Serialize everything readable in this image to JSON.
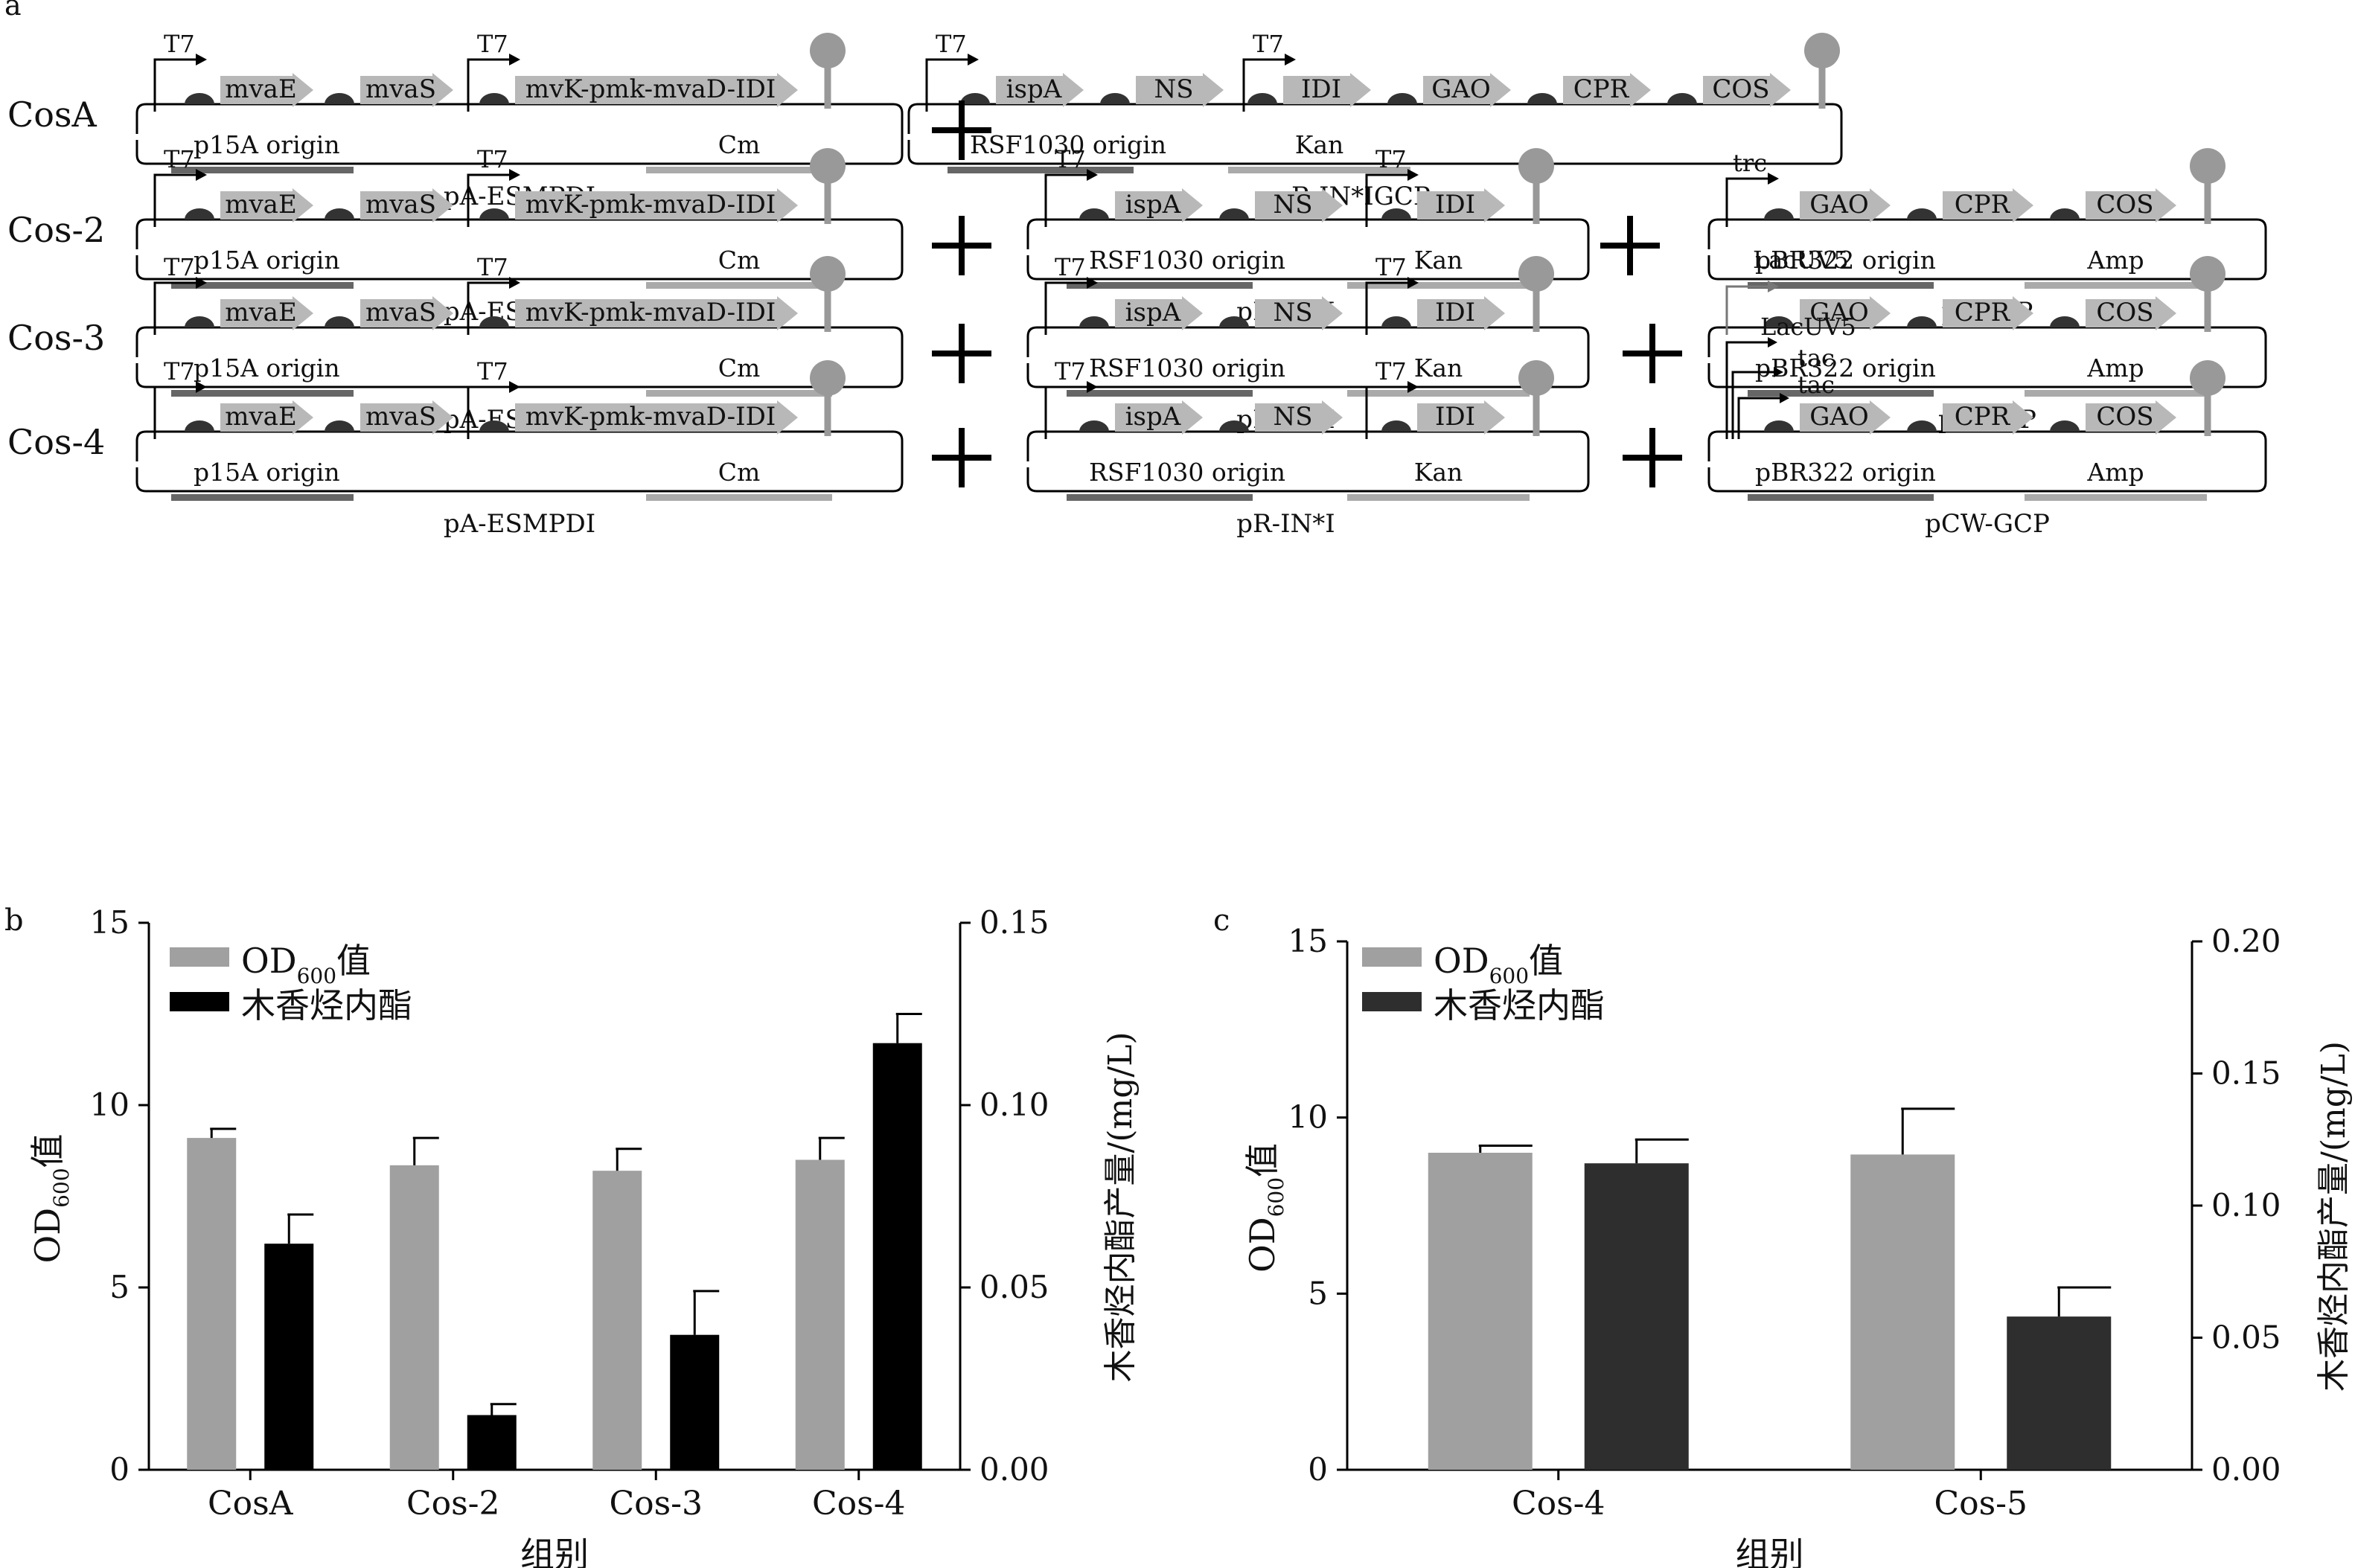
{
  "panel_a": {
    "label": "a",
    "plus_symbol": "+",
    "rows": [
      {
        "strain": "CosA",
        "plasmids": [
          {
            "name": "pA-ESMPDI",
            "origin": "p15A origin",
            "marker": "Cm",
            "promoters": [
              "T7",
              "T7"
            ],
            "genes": [
              "mvaE",
              "mvaS",
              "mvK-pmk-mvaD-IDI"
            ]
          },
          {
            "name": "pR-IN*IGCP",
            "origin": "RSF1030 origin",
            "marker": "Kan",
            "promoters": [
              "T7",
              "T7"
            ],
            "genes": [
              "ispA",
              "NS",
              "IDI",
              "GAO",
              "CPR",
              "COS"
            ]
          }
        ]
      },
      {
        "strain": "Cos-2",
        "plasmids": [
          {
            "name": "pA-ESMPDI",
            "origin": "p15A origin",
            "marker": "Cm",
            "promoters": [
              "T7",
              "T7"
            ],
            "genes": [
              "mvaE",
              "mvaS",
              "mvK-pmk-mvaD-IDI"
            ]
          },
          {
            "name": "pR-IN*I",
            "origin": "RSF1030 origin",
            "marker": "Kan",
            "promoters": [
              "T7",
              "T7"
            ],
            "genes": [
              "ispA",
              "NS",
              "IDI"
            ]
          },
          {
            "name": "pI-GCP",
            "origin": "pBR322 origin",
            "marker": "Amp",
            "promoters": [
              "trc"
            ],
            "genes": [
              "GAO",
              "CPR",
              "COS"
            ]
          }
        ]
      },
      {
        "strain": "Cos-3",
        "plasmids": [
          {
            "name": "pA-ESMPDI",
            "origin": "p15A origin",
            "marker": "Cm",
            "promoters": [
              "T7",
              "T7"
            ],
            "genes": [
              "mvaE",
              "mvaS",
              "mvK-pmk-mvaD-IDI"
            ]
          },
          {
            "name": "pR-IN*I",
            "origin": "RSF1030 origin",
            "marker": "Kan",
            "promoters": [
              "T7",
              "T7"
            ],
            "genes": [
              "ispA",
              "NS",
              "IDI"
            ]
          },
          {
            "name": "pL-GCP",
            "origin": "pBR322 origin",
            "marker": "Amp",
            "promoters": [
              "LacUV5"
            ],
            "genes": [
              "GAO",
              "CPR",
              "COS"
            ]
          }
        ]
      },
      {
        "strain": "Cos-4",
        "plasmids": [
          {
            "name": "pA-ESMPDI",
            "origin": "p15A origin",
            "marker": "Cm",
            "promoters": [
              "T7",
              "T7"
            ],
            "genes": [
              "mvaE",
              "mvaS",
              "mvK-pmk-mvaD-IDI"
            ]
          },
          {
            "name": "pR-IN*I",
            "origin": "RSF1030 origin",
            "marker": "Kan",
            "promoters": [
              "T7",
              "T7"
            ],
            "genes": [
              "ispA",
              "NS",
              "IDI"
            ]
          },
          {
            "name": "pCW-GCP",
            "origin": "pBR322 origin",
            "marker": "Amp",
            "promoters": [
              "LacUV5",
              "tac",
              "tac"
            ],
            "genes": [
              "GAO",
              "CPR",
              "COS"
            ]
          }
        ]
      }
    ]
  },
  "chart_data": [
    {
      "panel": "b",
      "type": "bar",
      "title": "",
      "xlabel": "组别",
      "ylabel_left": {
        "main": "OD",
        "sub": "600",
        "suffix": "值"
      },
      "ylabel_right": "木香烃内酯产量/(mg/L)",
      "categories": [
        "CosA",
        "Cos-2",
        "Cos-3",
        "Cos-4"
      ],
      "ylim_left": [
        0,
        15
      ],
      "yticks_left": [
        0,
        5,
        10,
        15
      ],
      "ylim_right": [
        0,
        0.15
      ],
      "yticks_right": [
        "0.00",
        "0.05",
        "0.10",
        "0.15"
      ],
      "legend": {
        "location": "top-left"
      },
      "grid": false,
      "series": [
        {
          "name": "OD600值",
          "legend_main": "OD",
          "legend_sub": "600",
          "legend_suffix": "值",
          "axis": "left",
          "color": "#a0a0a0",
          "values": [
            9.1,
            8.35,
            8.2,
            8.5
          ],
          "errors": [
            0.25,
            0.75,
            0.6,
            0.6
          ]
        },
        {
          "name": "木香烃内酯",
          "legend_main": "木香烃内酯",
          "axis": "right",
          "color": "#000000",
          "values": [
            0.062,
            0.015,
            0.037,
            0.117
          ],
          "errors": [
            0.008,
            0.003,
            0.012,
            0.008
          ]
        }
      ]
    },
    {
      "panel": "c",
      "type": "bar",
      "title": "",
      "xlabel": "组别",
      "ylabel_left": {
        "main": "OD",
        "sub": "600",
        "suffix": "值"
      },
      "ylabel_right": "木香烃内酯产量/(mg/L)",
      "categories": [
        "Cos-4",
        "Cos-5"
      ],
      "ylim_left": [
        0,
        15
      ],
      "yticks_left": [
        0,
        5,
        10,
        15
      ],
      "ylim_right": [
        0,
        0.2
      ],
      "yticks_right": [
        "0.00",
        "0.05",
        "0.10",
        "0.15",
        "0.20"
      ],
      "legend": {
        "location": "top-left"
      },
      "grid": false,
      "series": [
        {
          "name": "OD600值",
          "legend_main": "OD",
          "legend_sub": "600",
          "legend_suffix": "值",
          "axis": "left",
          "color": "#a0a0a0",
          "values": [
            9.0,
            8.95
          ],
          "errors": [
            0.2,
            1.3
          ]
        },
        {
          "name": "木香烃内酯",
          "legend_main": "木香烃内酯",
          "axis": "right",
          "color": "#2e2e2e",
          "values": [
            0.116,
            0.058
          ],
          "errors": [
            0.009,
            0.011
          ]
        }
      ]
    }
  ],
  "colors": {
    "gene_arrow": "#b8b8b8",
    "rbs": "#333333",
    "terminator": "#999999",
    "origin_bar": "#666666",
    "marker_bar": "#aaaaaa",
    "axis": "#000000"
  }
}
